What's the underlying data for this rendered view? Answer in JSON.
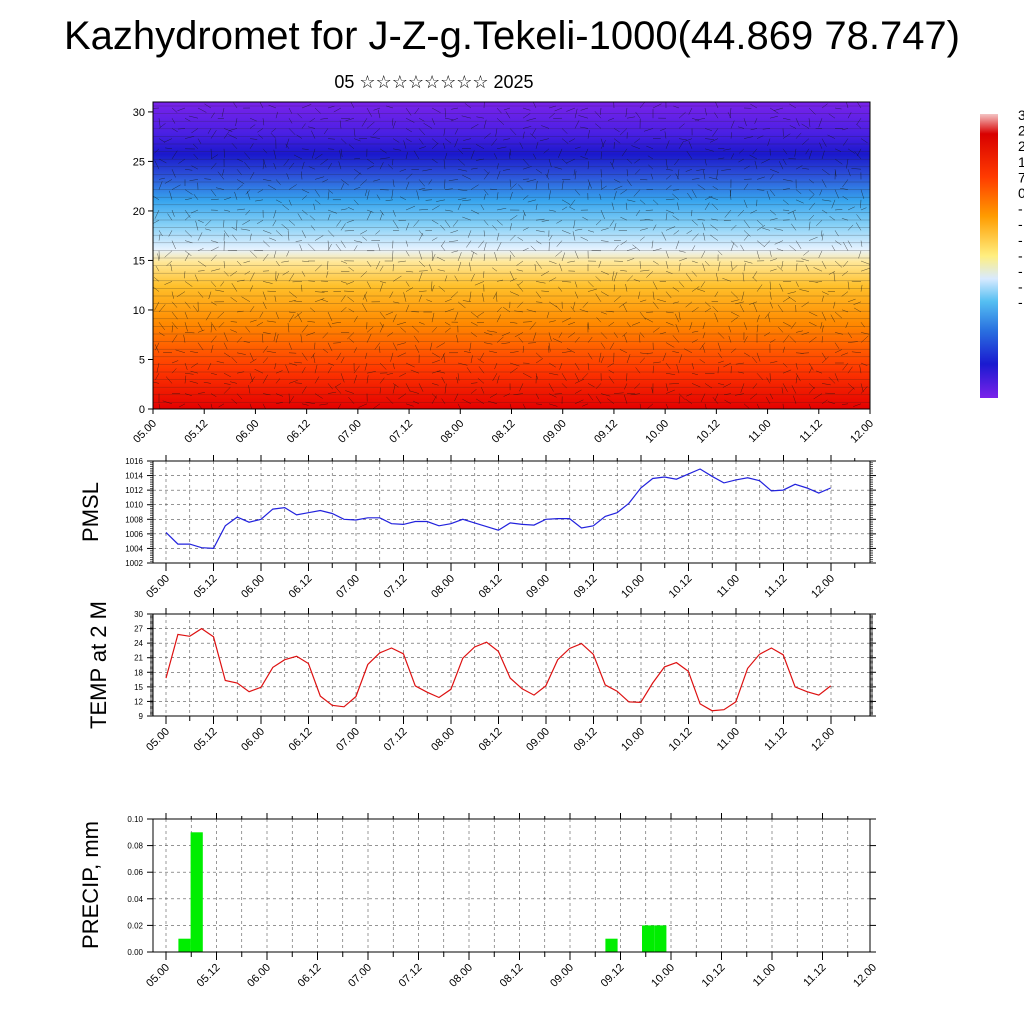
{
  "page": {
    "title": "Kazhydromet for J-Z-g.Tekeli-1000(44.869 78.747)",
    "subtitle": "05 ☆☆☆☆☆☆☆☆ 2025"
  },
  "colors": {
    "pmsl_line": "#2222dd",
    "temp_line": "#dd1111",
    "precip_bar": "#00ee00",
    "contour_high": "#e00000",
    "contour_mid": "#ffe066",
    "contour_low": "#7a1fe0"
  },
  "colorbar": {
    "labels": [
      "3",
      "2",
      "2",
      "1",
      "7",
      "0",
      "-",
      "-",
      "-",
      "-",
      "-",
      "-",
      "-"
    ]
  },
  "chart_data": [
    {
      "type": "heatmap",
      "name_hint": "cross-section",
      "x_ticks": [
        "05.00",
        "05.12",
        "06.00",
        "06.12",
        "07.00",
        "07.12",
        "08.00",
        "08.12",
        "09.00",
        "09.12",
        "10.00",
        "10.12",
        "11.00",
        "11.12",
        "12.00"
      ],
      "y_ticks": [
        "0",
        "5",
        "10",
        "15",
        "20",
        "25",
        "30"
      ],
      "ylim": [
        0,
        31
      ]
    },
    {
      "type": "line",
      "ylabel": "PMSL",
      "ylim": [
        1002,
        1016
      ],
      "y_ticks": [
        "1002",
        "1004",
        "1006",
        "1008",
        "1010",
        "1012",
        "1014",
        "1016"
      ],
      "x_ticks": [
        "05.00",
        "05.12",
        "06.00",
        "06.12",
        "07.00",
        "07.12",
        "08.00",
        "08.12",
        "09.00",
        "09.12",
        "10.00",
        "10.12",
        "11.00",
        "11.12",
        "12.00"
      ],
      "grid": true,
      "values": [
        1006.2,
        1004.6,
        1004.6,
        1004.1,
        1004.0,
        1007.1,
        1008.3,
        1007.6,
        1008.0,
        1009.4,
        1009.6,
        1008.6,
        1008.9,
        1009.2,
        1008.8,
        1008.0,
        1007.9,
        1008.2,
        1008.2,
        1007.4,
        1007.3,
        1007.7,
        1007.7,
        1007.1,
        1007.4,
        1008.0,
        1007.5,
        1007.0,
        1006.5,
        1007.5,
        1007.3,
        1007.2,
        1008.0,
        1008.1,
        1008.1,
        1006.8,
        1007.1,
        1008.4,
        1008.9,
        1010.2,
        1012.3,
        1013.6,
        1013.8,
        1013.5,
        1014.2,
        1014.9,
        1013.9,
        1013.0,
        1013.4,
        1013.7,
        1013.3,
        1011.9,
        1012.0,
        1012.8,
        1012.3,
        1011.6,
        1012.3
      ]
    },
    {
      "type": "line",
      "ylabel": "TEMP at 2 M",
      "ylim": [
        9,
        30
      ],
      "y_ticks": [
        "9",
        "12",
        "15",
        "18",
        "21",
        "24",
        "27",
        "30"
      ],
      "x_ticks": [
        "05.00",
        "05.12",
        "06.00",
        "06.12",
        "07.00",
        "07.12",
        "08.00",
        "08.12",
        "09.00",
        "09.12",
        "10.00",
        "10.12",
        "11.00",
        "11.12",
        "12.00"
      ],
      "grid": true,
      "values": [
        16.8,
        25.8,
        25.4,
        27.0,
        25.3,
        16.3,
        15.8,
        14.0,
        14.9,
        19.0,
        20.6,
        21.3,
        19.8,
        13.1,
        11.2,
        10.9,
        13.0,
        19.6,
        22.0,
        23.0,
        21.8,
        15.2,
        13.9,
        12.8,
        14.5,
        20.9,
        23.2,
        24.2,
        22.3,
        16.8,
        14.6,
        13.3,
        15.2,
        20.6,
        22.9,
        23.9,
        21.7,
        15.4,
        14.1,
        11.9,
        11.8,
        15.8,
        19.1,
        20.0,
        18.2,
        11.5,
        10.1,
        10.3,
        11.9,
        18.8,
        21.7,
        23.0,
        21.6,
        15.0,
        14.0,
        13.3,
        15.2
      ]
    },
    {
      "type": "bar",
      "ylabel": "PRECIP, mm",
      "ylim": [
        0,
        0.1
      ],
      "y_ticks": [
        "0.00",
        "0.02",
        "0.04",
        "0.06",
        "0.08",
        "0.10"
      ],
      "x_ticks": [
        "05.00",
        "05.12",
        "06.00",
        "06.12",
        "07.00",
        "07.12",
        "08.00",
        "08.12",
        "09.00",
        "09.12",
        "10.00",
        "10.12",
        "11.00",
        "11.12",
        "12.00"
      ],
      "grid": true,
      "values": [
        0,
        0,
        0.01,
        0.09,
        0,
        0,
        0,
        0,
        0,
        0,
        0,
        0,
        0,
        0,
        0,
        0,
        0,
        0,
        0,
        0,
        0,
        0,
        0,
        0,
        0,
        0,
        0,
        0,
        0,
        0,
        0,
        0,
        0,
        0,
        0,
        0,
        0,
        0.01,
        0,
        0,
        0.02,
        0.02,
        0,
        0,
        0,
        0,
        0,
        0,
        0,
        0,
        0,
        0,
        0,
        0,
        0,
        0,
        0
      ]
    }
  ]
}
